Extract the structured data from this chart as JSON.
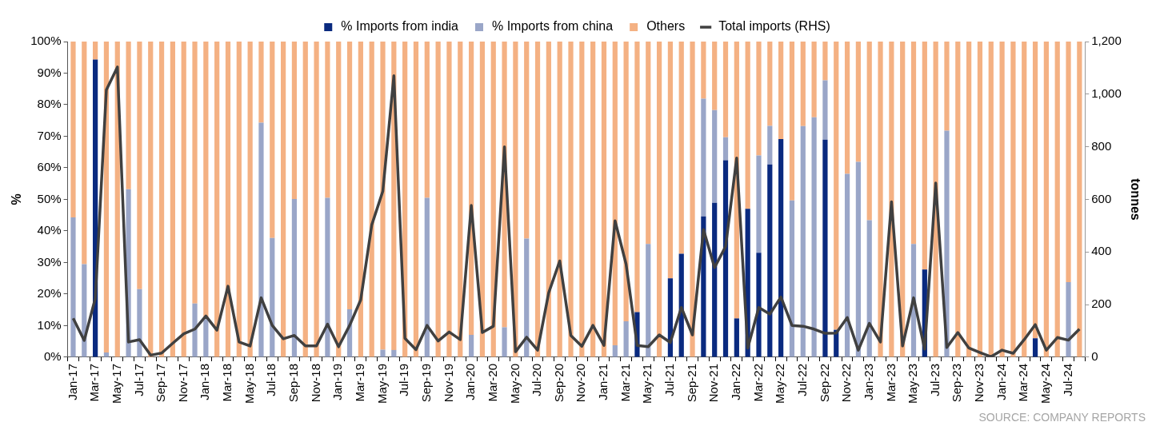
{
  "chart_data": {
    "type": "bar",
    "stacked": true,
    "categories": [
      "Jan-17",
      null,
      "Mar-17",
      null,
      "May-17",
      null,
      "Jul-17",
      null,
      "Sep-17",
      null,
      "Nov-17",
      null,
      "Jan-18",
      null,
      "Mar-18",
      null,
      "May-18",
      null,
      "Jul-18",
      null,
      "Sep-18",
      null,
      "Nov-18",
      null,
      "Jan-19",
      null,
      "Mar-19",
      null,
      "May-19",
      null,
      "Jul-19",
      null,
      "Sep-19",
      null,
      "Nov-19",
      null,
      "Jan-20",
      null,
      "Mar-20",
      null,
      "May-20",
      null,
      "Jul-20",
      null,
      "Sep-20",
      null,
      "Nov-20",
      null,
      "Jan-21",
      null,
      "Mar-21",
      null,
      "May-21",
      null,
      "Jul-21",
      null,
      "Sep-21",
      null,
      "Nov-21",
      null,
      "Jan-22",
      null,
      "Mar-22",
      null,
      "May-22",
      null,
      "Jul-22",
      null,
      "Sep-22",
      null,
      "Nov-22",
      null,
      "Jan-23",
      null,
      "Mar-23",
      null,
      "May-23",
      null,
      "Jul-23",
      null,
      "Sep-23",
      null,
      "Nov-23",
      null,
      "Jan-24",
      null,
      "Mar-24",
      null,
      "May-24",
      null,
      "Jul-24",
      null
    ],
    "series": [
      {
        "name": "% Imports from india",
        "color": "#0a2a7f",
        "values": [
          null,
          null,
          94.3,
          null,
          null,
          null,
          null,
          null,
          null,
          null,
          null,
          null,
          null,
          null,
          null,
          null,
          null,
          null,
          null,
          null,
          null,
          null,
          null,
          null,
          null,
          null,
          null,
          null,
          null,
          null,
          null,
          null,
          null,
          null,
          null,
          null,
          null,
          null,
          null,
          null,
          null,
          null,
          null,
          null,
          null,
          null,
          null,
          null,
          null,
          null,
          null,
          14.3,
          null,
          null,
          25.0,
          32.8,
          null,
          44.6,
          48.9,
          62.4,
          12.3,
          47.0,
          33.1,
          61.1,
          69.1,
          null,
          null,
          null,
          68.9,
          8.7,
          null,
          null,
          null,
          null,
          null,
          null,
          null,
          27.8,
          null,
          null,
          null,
          null,
          null,
          null,
          null,
          null,
          null,
          6.0,
          null,
          null,
          null,
          null
        ]
      },
      {
        "name": "% Imports from china",
        "color": "#9aa6c8",
        "values": [
          44.3,
          29.5,
          null,
          1.5,
          null,
          53.2,
          21.6,
          null,
          null,
          null,
          null,
          17.0,
          12.1,
          null,
          null,
          null,
          null,
          74.3,
          37.8,
          null,
          50.1,
          null,
          null,
          50.5,
          null,
          15.2,
          null,
          null,
          2.4,
          2.3,
          null,
          null,
          50.5,
          null,
          null,
          null,
          7.1,
          null,
          null,
          9.5,
          null,
          37.6,
          null,
          null,
          null,
          null,
          null,
          null,
          null,
          3.8,
          11.4,
          null,
          35.9,
          null,
          null,
          null,
          null,
          37.3,
          29.4,
          7.3,
          null,
          null,
          30.8,
          12.2,
          null,
          49.7,
          73.2,
          76.0,
          18.8,
          null,
          58.1,
          61.9,
          43.4,
          null,
          null,
          null,
          35.9,
          null,
          null,
          71.8,
          null,
          null,
          null,
          null,
          null,
          null,
          null,
          null,
          null,
          null,
          23.8,
          null
        ]
      },
      {
        "name": "Others",
        "color": "#f4b183",
        "values": [
          55.7,
          70.5,
          5.7,
          98.5,
          100,
          46.8,
          78.4,
          100,
          100,
          100,
          100,
          83.0,
          87.9,
          100,
          100,
          100,
          100,
          25.7,
          62.2,
          100,
          49.9,
          100,
          100,
          49.5,
          100,
          84.8,
          100,
          100,
          97.6,
          97.7,
          100,
          100,
          49.5,
          100,
          100,
          100,
          92.9,
          100,
          100,
          90.5,
          100,
          62.4,
          100,
          100,
          100,
          100,
          100,
          100,
          100,
          96.2,
          88.6,
          85.7,
          64.1,
          100,
          75.0,
          67.2,
          100,
          18.1,
          21.7,
          30.3,
          87.7,
          53.0,
          36.1,
          26.7,
          30.9,
          50.3,
          26.8,
          24.0,
          12.3,
          91.3,
          41.9,
          38.1,
          56.6,
          100,
          100,
          100,
          64.1,
          72.2,
          100,
          28.2,
          100,
          100,
          100,
          100,
          100,
          100,
          100,
          94.0,
          100,
          100,
          76.2,
          100
        ]
      },
      {
        "name": "Total imports (RHS)",
        "type": "line",
        "axis": "y2",
        "color": "#404040",
        "values": [
          148,
          64,
          224,
          1016,
          1103,
          58,
          67,
          8,
          16,
          53,
          89,
          107,
          157,
          103,
          270,
          58,
          43,
          226,
          121,
          70,
          83,
          43,
          43,
          126,
          40,
          121,
          218,
          503,
          631,
          1070,
          72,
          29,
          121,
          62,
          96,
          67,
          577,
          94,
          118,
          800,
          21,
          76,
          27,
          245,
          366,
          83,
          42,
          121,
          45,
          519,
          354,
          45,
          40,
          85,
          56,
          189,
          85,
          485,
          341,
          421,
          757,
          35,
          189,
          164,
          229,
          121,
          118,
          107,
          91,
          92,
          151,
          27,
          129,
          58,
          591,
          43,
          226,
          31,
          662,
          37,
          94,
          35,
          18,
          2,
          27,
          15,
          67,
          124,
          27,
          75,
          65,
          107
        ]
      }
    ],
    "ylabel": "%",
    "y2label": "tonnes",
    "ylim": [
      0,
      100
    ],
    "yticks": [
      {
        "value": 0,
        "label": "0%"
      },
      {
        "value": 10,
        "label": "10%"
      },
      {
        "value": 20,
        "label": "20%"
      },
      {
        "value": 30,
        "label": "30%"
      },
      {
        "value": 40,
        "label": "40%"
      },
      {
        "value": 50,
        "label": "50%"
      },
      {
        "value": 60,
        "label": "60%"
      },
      {
        "value": 70,
        "label": "70%"
      },
      {
        "value": 80,
        "label": "80%"
      },
      {
        "value": 90,
        "label": "90%"
      },
      {
        "value": 100,
        "label": "100%"
      }
    ],
    "y2lim": [
      0,
      1200
    ],
    "y2ticks": [
      0,
      200,
      400,
      600,
      800,
      {
        "value": 1000,
        "label": "1,000"
      },
      {
        "value": 1200,
        "label": "1,200"
      }
    ],
    "marker": "none",
    "line_style": "solid",
    "grid": false,
    "legend": "top",
    "annotations": [
      "SOURCE: COMPANY REPORTS"
    ]
  }
}
